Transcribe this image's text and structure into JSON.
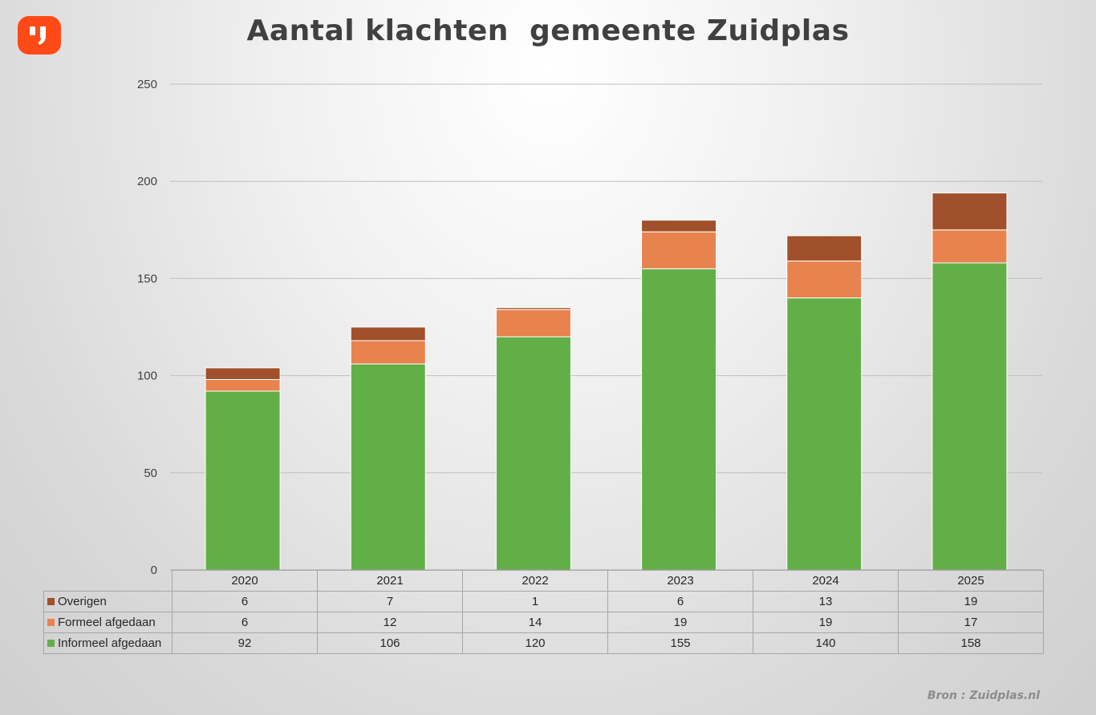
{
  "title": "Aantal klachten  gemeente Zuidplas",
  "source": "Bron : Zuidplas.nl",
  "logo_icon": "quote-mark-icon",
  "colors": {
    "logo": "#ff4a17",
    "Overigen": "#a0502a",
    "Formeel afgedaan": "#e8834d",
    "Informeel afgedaan": "#62af48"
  },
  "chart_data": {
    "type": "bar",
    "stacked": true,
    "categories": [
      "2020",
      "2021",
      "2022",
      "2023",
      "2024",
      "2025"
    ],
    "series": [
      {
        "name": "Informeel afgedaan",
        "values": [
          92,
          106,
          120,
          155,
          140,
          158
        ]
      },
      {
        "name": "Formeel afgedaan",
        "values": [
          6,
          12,
          14,
          19,
          19,
          17
        ]
      },
      {
        "name": "Overigen",
        "values": [
          6,
          7,
          1,
          6,
          13,
          19
        ]
      }
    ],
    "ylim": [
      0,
      250
    ],
    "yticks": [
      "0",
      "50",
      "100",
      "150",
      "200",
      "250"
    ],
    "grid": true,
    "legend": "data table below chart"
  },
  "table": {
    "rows": [
      {
        "label": "Overigen",
        "values": [
          "6",
          "7",
          "1",
          "6",
          "13",
          "19"
        ]
      },
      {
        "label": "Formeel afgedaan",
        "values": [
          "6",
          "12",
          "14",
          "19",
          "19",
          "17"
        ]
      },
      {
        "label": "Informeel afgedaan",
        "values": [
          "92",
          "106",
          "120",
          "155",
          "140",
          "158"
        ]
      }
    ]
  }
}
